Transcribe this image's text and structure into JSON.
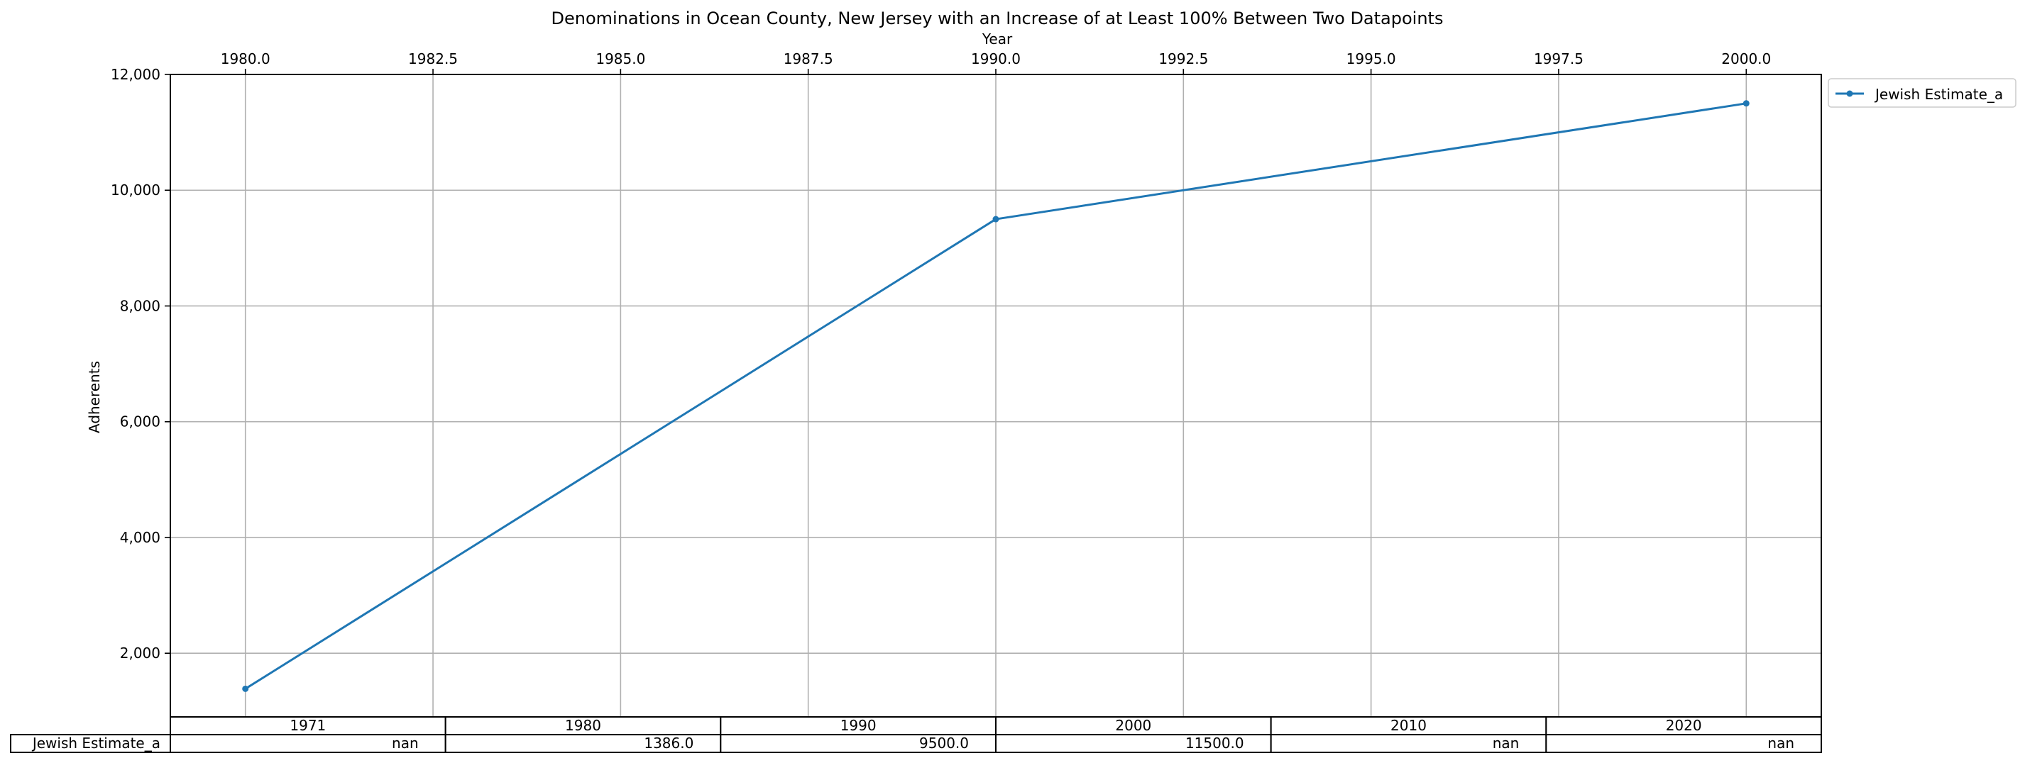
{
  "chart_data": {
    "type": "line",
    "title": "Denominations in Ocean County, New Jersey with an Increase of at Least 100% Between Two Datapoints",
    "xlabel": "Year",
    "ylabel": "Adherents",
    "xlim": [
      1979.0,
      2001.0
    ],
    "ylim": [
      900,
      12000
    ],
    "x_ticks": [
      "1980.0",
      "1982.5",
      "1985.0",
      "1987.5",
      "1990.0",
      "1992.5",
      "1995.0",
      "1997.5",
      "2000.0"
    ],
    "y_ticks": [
      "2,000",
      "4,000",
      "6,000",
      "8,000",
      "10,000",
      "12,000"
    ],
    "grid": true,
    "legend_position": "outside-top-right",
    "series": [
      {
        "name": "Jewish Estimate_a",
        "color": "#1f77b4",
        "x": [
          1980,
          1990,
          2000
        ],
        "y": [
          1386.0,
          9500.0,
          11500.0
        ]
      }
    ],
    "table": {
      "columns": [
        "1971",
        "1980",
        "1990",
        "2000",
        "2010",
        "2020"
      ],
      "rows": [
        {
          "label": "Jewish Estimate_a",
          "values": [
            "nan",
            "1386.0",
            "9500.0",
            "11500.0",
            "nan",
            "nan"
          ]
        }
      ]
    }
  }
}
